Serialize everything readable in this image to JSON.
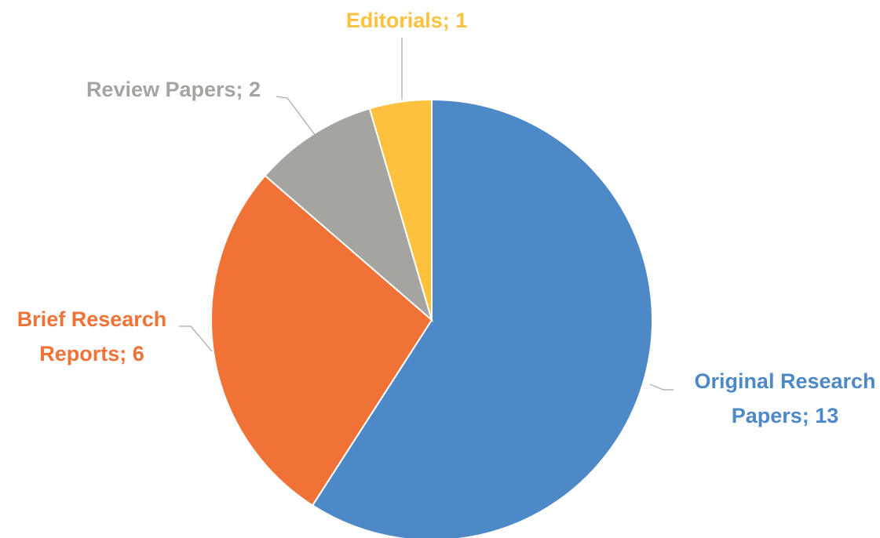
{
  "chart_data": {
    "type": "pie",
    "start_angle": "12 o'clock",
    "direction": "clockwise",
    "legend": "none",
    "slices": [
      {
        "category": "Original Research Papers",
        "value": 13,
        "color": "#4e89c7",
        "label_lines": [
          "Original Research",
          "Papers; 13"
        ]
      },
      {
        "category": "Brief Research Reports",
        "value": 6,
        "color": "#f07236",
        "label_lines": [
          "Brief Research",
          "Reports; 6"
        ]
      },
      {
        "category": "Review Papers",
        "value": 2,
        "color": "#a6a4a1",
        "label_lines": [
          "Review Papers; 2"
        ]
      },
      {
        "category": "Editorials",
        "value": 1,
        "color": "#fdc13d",
        "label_lines": [
          "Editorials; 1"
        ]
      }
    ]
  }
}
